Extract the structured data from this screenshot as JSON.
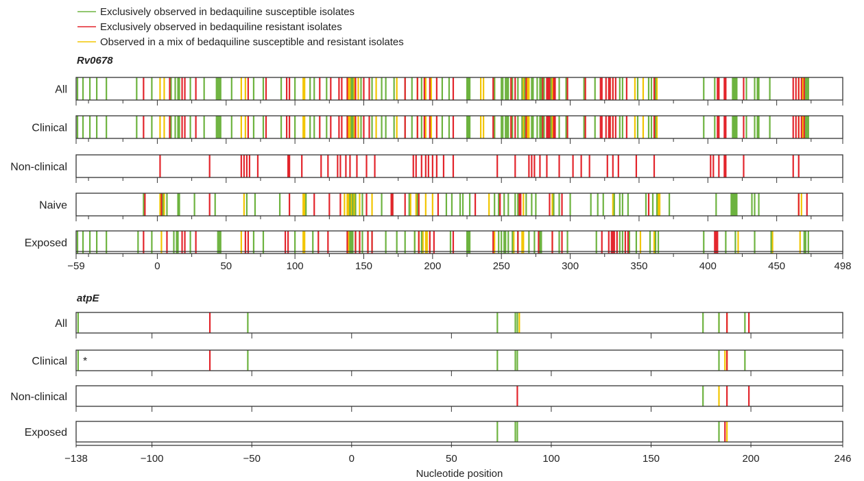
{
  "colors": {
    "susceptible": "#6db33f",
    "resistant": "#e3242b",
    "mixed": "#f2c500",
    "frame": "#333333"
  },
  "legend": [
    {
      "key": "susceptible",
      "label": "Exclusively observed in bedaquiline susceptible isolates"
    },
    {
      "key": "resistant",
      "label": "Exclusively observed in bedaquiline resistant isolates"
    },
    {
      "key": "mixed",
      "label": "Observed in a mix of bedaquiline susceptible and resistant isolates"
    }
  ],
  "chart_data": [
    {
      "type": "strip",
      "gene": "Rv0678",
      "xlim": [
        -59,
        498
      ],
      "ticks": [
        -59,
        0,
        50,
        100,
        150,
        200,
        250,
        300,
        350,
        400,
        450,
        498
      ],
      "minor_ticks": [
        -50,
        -25,
        25,
        75,
        125,
        175,
        225,
        275,
        325,
        375,
        425,
        475
      ],
      "rows": [
        {
          "label": "All",
          "S": [
            -58,
            -54,
            -49,
            -44,
            -37,
            -15,
            -4,
            10,
            13,
            15,
            16,
            24,
            34,
            43,
            44,
            45,
            46,
            54,
            70,
            77,
            90,
            100,
            111,
            114,
            123,
            141,
            142,
            148,
            156,
            163,
            166,
            172,
            180,
            185,
            192,
            207,
            212,
            225,
            226,
            227,
            245,
            250,
            251,
            253,
            254,
            255,
            258,
            262,
            265,
            267,
            272,
            273,
            276,
            278,
            279,
            281,
            286,
            292,
            297,
            310,
            318,
            336,
            338,
            349,
            357,
            359,
            362,
            397,
            405,
            418,
            419,
            420,
            421,
            428,
            434,
            436,
            437,
            445,
            471,
            472,
            473
          ],
          "R": [
            -10,
            9,
            18,
            20,
            28,
            66,
            79,
            94,
            96,
            118,
            126,
            132,
            134,
            138,
            144,
            150,
            154,
            180,
            189,
            194,
            198,
            203,
            215,
            244,
            257,
            260,
            268,
            280,
            283,
            284,
            285,
            288,
            289,
            298,
            311,
            322,
            323,
            326,
            328,
            329,
            331,
            333,
            341,
            361,
            407,
            408,
            412,
            413,
            426,
            462,
            464,
            466,
            468,
            470
          ],
          "M": [
            2,
            5,
            61,
            64,
            106,
            107,
            139,
            140,
            141,
            143,
            146,
            159,
            174,
            189,
            195,
            199,
            235,
            237,
            245,
            257,
            266,
            269,
            270,
            287,
            331,
            347,
            353,
            363,
            466,
            469
          ]
        },
        {
          "label": "Clinical",
          "S": [
            -58,
            -54,
            -49,
            -44,
            -37,
            -15,
            -4,
            10,
            13,
            15,
            16,
            24,
            34,
            43,
            44,
            45,
            46,
            54,
            70,
            77,
            90,
            100,
            111,
            114,
            123,
            141,
            142,
            148,
            156,
            163,
            166,
            172,
            180,
            185,
            192,
            207,
            212,
            225,
            226,
            227,
            245,
            250,
            251,
            253,
            254,
            255,
            258,
            262,
            265,
            267,
            272,
            273,
            276,
            278,
            279,
            281,
            286,
            292,
            297,
            310,
            318,
            336,
            338,
            349,
            357,
            359,
            362,
            397,
            405,
            418,
            419,
            420,
            421,
            428,
            434,
            436,
            437,
            445,
            471,
            472,
            473
          ],
          "R": [
            -10,
            9,
            18,
            20,
            28,
            66,
            79,
            94,
            96,
            118,
            126,
            132,
            134,
            138,
            144,
            150,
            154,
            180,
            189,
            194,
            198,
            203,
            215,
            244,
            257,
            260,
            268,
            280,
            283,
            284,
            285,
            288,
            289,
            298,
            311,
            322,
            323,
            326,
            328,
            329,
            331,
            333,
            341,
            361,
            407,
            408,
            412,
            413,
            426,
            462,
            464,
            466,
            468,
            470
          ],
          "M": [
            2,
            5,
            61,
            64,
            106,
            107,
            139,
            140,
            141,
            143,
            146,
            159,
            174,
            189,
            195,
            199,
            235,
            237,
            245,
            257,
            266,
            269,
            270,
            287,
            331,
            347,
            353,
            363,
            466,
            469
          ]
        },
        {
          "label": "Non-clinical",
          "S": [],
          "R": [
            2,
            38,
            61,
            63,
            65,
            67,
            73,
            95,
            96,
            105,
            119,
            124,
            131,
            133,
            137,
            140,
            145,
            152,
            158,
            186,
            188,
            192,
            195,
            197,
            200,
            203,
            208,
            215,
            247,
            260,
            270,
            272,
            274,
            278,
            283,
            292,
            302,
            308,
            314,
            327,
            331,
            335,
            348,
            361,
            402,
            404,
            408,
            412,
            413,
            426,
            462,
            466
          ],
          "M": []
        },
        {
          "label": "Naive",
          "S": [
            -10,
            4,
            7,
            15,
            16,
            27,
            42,
            65,
            71,
            89,
            108,
            140,
            142,
            144,
            149,
            163,
            171,
            183,
            189,
            210,
            214,
            220,
            222,
            227,
            245,
            248,
            252,
            255,
            260,
            262,
            268,
            272,
            275,
            288,
            292,
            300,
            315,
            320,
            324,
            332,
            336,
            338,
            342,
            355,
            360,
            363,
            372,
            406,
            417,
            418,
            419,
            420,
            421,
            432,
            434,
            437
          ],
          "R": [
            -9,
            3,
            38,
            96,
            114,
            125,
            133,
            152,
            170,
            171,
            180,
            190,
            204,
            231,
            249,
            263,
            264,
            285,
            294,
            357,
            466,
            472
          ],
          "M": [
            2,
            5,
            63,
            106,
            107,
            136,
            138,
            139,
            140,
            141,
            142,
            143,
            144,
            147,
            156,
            170,
            184,
            188,
            195,
            200,
            241,
            266,
            287,
            331,
            364,
            365,
            466,
            468
          ]
        },
        {
          "label": "Exposed",
          "S": [
            -58,
            -54,
            -49,
            -44,
            -37,
            -14,
            -4,
            12,
            14,
            15,
            24,
            44,
            45,
            46,
            70,
            77,
            100,
            113,
            140,
            141,
            142,
            144,
            149,
            156,
            166,
            174,
            180,
            187,
            192,
            198,
            213,
            225,
            226,
            227,
            248,
            250,
            252,
            253,
            255,
            258,
            262,
            270,
            274,
            278,
            279,
            292,
            298,
            319,
            336,
            338,
            343,
            348,
            358,
            362,
            364,
            397,
            413,
            420,
            434,
            446,
            470,
            471,
            473
          ],
          "R": [
            -10,
            7,
            18,
            20,
            28,
            64,
            66,
            93,
            95,
            117,
            124,
            138,
            144,
            147,
            153,
            156,
            190,
            198,
            201,
            215,
            244,
            262,
            277,
            287,
            294,
            323,
            328,
            330,
            331,
            332,
            334,
            340,
            342,
            405,
            406,
            407
          ],
          "M": [
            3,
            61,
            106,
            107,
            139,
            140,
            147,
            153,
            187,
            190,
            193,
            195,
            196,
            245,
            259,
            265,
            266,
            287,
            351,
            361,
            422,
            447,
            467
          ]
        }
      ]
    },
    {
      "type": "strip",
      "gene": "atpE",
      "xlim": [
        -138,
        246
      ],
      "ticks": [
        -138,
        -100,
        -50,
        0,
        50,
        100,
        150,
        200,
        246
      ],
      "minor_ticks": [],
      "xlabel": "Nucleotide position",
      "rows": [
        {
          "label": "All",
          "S": [
            -137,
            -52,
            73,
            82,
            83,
            176,
            184,
            197
          ],
          "R": [
            -71,
            188,
            199
          ],
          "M": [
            84,
            184,
            188
          ]
        },
        {
          "label": "Clinical",
          "S": [
            -137,
            -52,
            73,
            82,
            83,
            184,
            197
          ],
          "R": [
            -71,
            188
          ],
          "M": [
            187,
            188
          ],
          "note": "*"
        },
        {
          "label": "Non-clinical",
          "S": [
            176
          ],
          "R": [
            83,
            188,
            199
          ],
          "M": [
            184
          ]
        },
        {
          "label": "Exposed",
          "S": [
            73,
            82,
            83,
            184
          ],
          "R": [
            187
          ],
          "M": [
            188
          ]
        }
      ]
    }
  ]
}
